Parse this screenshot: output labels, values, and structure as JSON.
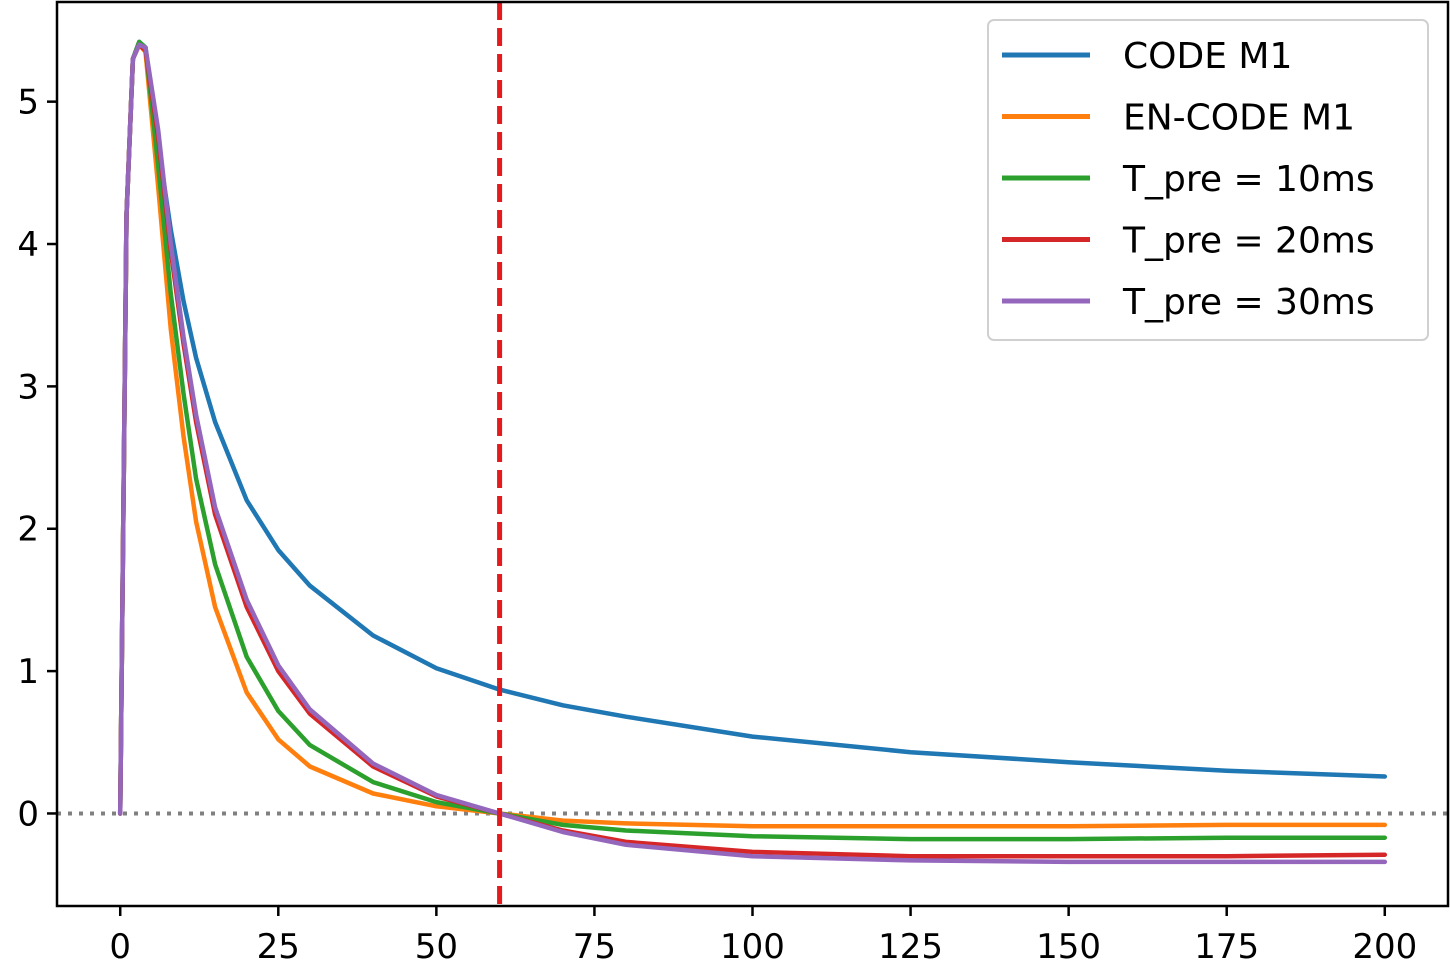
{
  "chart_data": {
    "type": "line",
    "title": "",
    "xlabel": "",
    "ylabel": "",
    "xlim": [
      -10,
      210
    ],
    "ylim": [
      -0.65,
      5.7
    ],
    "xticks": [
      0,
      25,
      50,
      75,
      100,
      125,
      150,
      175,
      200
    ],
    "yticks": [
      0,
      1,
      2,
      3,
      4,
      5
    ],
    "legend_position": "top-right",
    "grid": false,
    "reference_lines": [
      {
        "orientation": "vertical",
        "x": 60,
        "style": "dashed",
        "color": "#e41a1c"
      },
      {
        "orientation": "horizontal",
        "y": 0,
        "style": "dotted",
        "color": "#808080"
      }
    ],
    "x": [
      0,
      1,
      2,
      3,
      4,
      6,
      8,
      10,
      12,
      15,
      20,
      25,
      30,
      40,
      50,
      60,
      70,
      80,
      100,
      125,
      150,
      175,
      200
    ],
    "series": [
      {
        "name": "CODE M1",
        "color": "#1f77b4",
        "values": [
          0,
          4.2,
          5.3,
          5.42,
          5.38,
          4.7,
          4.1,
          3.6,
          3.2,
          2.75,
          2.2,
          1.85,
          1.6,
          1.25,
          1.02,
          0.87,
          0.76,
          0.68,
          0.54,
          0.43,
          0.36,
          0.3,
          0.26
        ]
      },
      {
        "name": "EN-CODE M1",
        "color": "#ff7f0e",
        "values": [
          0,
          4.2,
          5.3,
          5.4,
          5.35,
          4.4,
          3.4,
          2.65,
          2.05,
          1.45,
          0.85,
          0.52,
          0.33,
          0.14,
          0.05,
          0.0,
          -0.05,
          -0.07,
          -0.09,
          -0.09,
          -0.09,
          -0.08,
          -0.08
        ]
      },
      {
        "name": "T_pre = 10ms",
        "color": "#2ca02c",
        "values": [
          0,
          4.2,
          5.3,
          5.42,
          5.38,
          4.55,
          3.65,
          2.95,
          2.35,
          1.75,
          1.1,
          0.72,
          0.48,
          0.22,
          0.08,
          0.0,
          -0.08,
          -0.12,
          -0.16,
          -0.18,
          -0.18,
          -0.17,
          -0.17
        ]
      },
      {
        "name": "T_pre = 20ms",
        "color": "#d62728",
        "values": [
          0,
          4.2,
          5.3,
          5.4,
          5.36,
          4.75,
          3.95,
          3.3,
          2.75,
          2.1,
          1.45,
          1.0,
          0.7,
          0.33,
          0.12,
          0.0,
          -0.12,
          -0.2,
          -0.27,
          -0.3,
          -0.3,
          -0.3,
          -0.29
        ]
      },
      {
        "name": "T_pre = 30ms",
        "color": "#9467bd",
        "values": [
          0,
          4.2,
          5.3,
          5.4,
          5.38,
          4.8,
          4.0,
          3.35,
          2.8,
          2.15,
          1.5,
          1.04,
          0.73,
          0.35,
          0.13,
          0.0,
          -0.13,
          -0.22,
          -0.3,
          -0.33,
          -0.34,
          -0.34,
          -0.34
        ]
      }
    ]
  }
}
